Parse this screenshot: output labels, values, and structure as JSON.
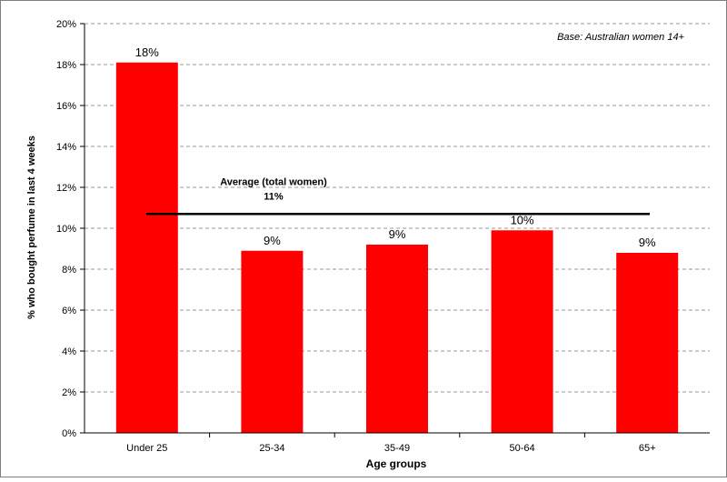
{
  "chart_data": {
    "type": "bar",
    "categories": [
      "Under 25",
      "25-34",
      "35-49",
      "50-64",
      "65+"
    ],
    "values": [
      18.1,
      8.9,
      9.2,
      9.9,
      8.8
    ],
    "data_labels": [
      "18%",
      "9%",
      "9%",
      "10%",
      "9%"
    ],
    "ylim": [
      0,
      20
    ],
    "yticks": [
      "0%",
      "2%",
      "4%",
      "6%",
      "8%",
      "10%",
      "12%",
      "14%",
      "16%",
      "18%",
      "20%"
    ],
    "xlabel": "Age groups",
    "ylabel": "% who bought perfume in last 4 weeks",
    "annotation": "Base: Australian women 14+",
    "average": {
      "value": 10.7,
      "label": "Average (total women)",
      "value_label": "11%"
    },
    "grid": true,
    "legend": "none",
    "colors": {
      "bar": "#ff0000",
      "average_line": "#000000",
      "grid": "#999999",
      "border": "#7f7f7f"
    }
  }
}
